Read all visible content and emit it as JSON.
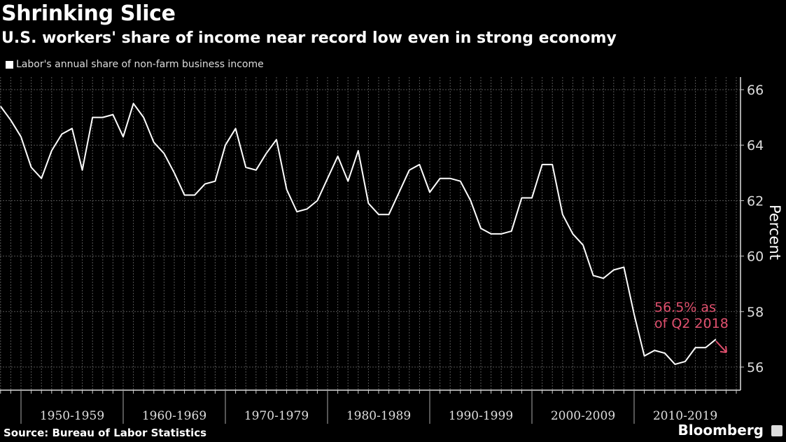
{
  "chart_data": {
    "type": "line",
    "title": "Shrinking Slice",
    "subtitle": "U.S. workers' share of income near record low even in strong economy",
    "ylabel": "Percent",
    "xlabel": "",
    "ylim": [
      55,
      66.5
    ],
    "yticks": [
      56,
      58,
      60,
      62,
      64,
      66
    ],
    "y_axis_position": "right",
    "grid": true,
    "legend_placement": "top-left",
    "x_decade_labels": [
      "1950-1959",
      "1960-1969",
      "1970-1979",
      "1980-1989",
      "1990-1999",
      "2000-2009",
      "2010-2019"
    ],
    "x_decade_starts": [
      1950,
      1960,
      1970,
      1980,
      1990,
      2000,
      2010
    ],
    "series": [
      {
        "name": "Labor's annual share of non-farm business income",
        "color": "#ffffff",
        "x": [
          1948,
          1949,
          1950,
          1951,
          1952,
          1953,
          1954,
          1955,
          1956,
          1957,
          1958,
          1959,
          1960,
          1961,
          1962,
          1963,
          1964,
          1965,
          1966,
          1967,
          1968,
          1969,
          1970,
          1971,
          1972,
          1973,
          1974,
          1975,
          1976,
          1977,
          1978,
          1979,
          1980,
          1981,
          1982,
          1983,
          1984,
          1985,
          1986,
          1987,
          1988,
          1989,
          1990,
          1991,
          1992,
          1993,
          1994,
          1995,
          1996,
          1997,
          1998,
          1999,
          2000,
          2001,
          2002,
          2003,
          2004,
          2005,
          2006,
          2007,
          2008,
          2009,
          2010,
          2011,
          2012,
          2013,
          2014,
          2015,
          2016,
          2017,
          2018
        ],
        "values": [
          65.4,
          64.9,
          64.3,
          63.2,
          62.8,
          63.8,
          64.4,
          64.6,
          63.1,
          65.0,
          65.0,
          65.1,
          64.3,
          65.5,
          65.0,
          64.1,
          63.7,
          63.0,
          62.2,
          62.2,
          62.6,
          62.7,
          64.0,
          64.6,
          63.2,
          63.1,
          63.7,
          64.2,
          62.4,
          61.6,
          61.7,
          62.0,
          62.8,
          63.6,
          62.7,
          63.8,
          61.9,
          61.5,
          61.5,
          62.3,
          63.1,
          63.3,
          62.3,
          62.8,
          62.8,
          62.7,
          62.0,
          61.0,
          60.8,
          60.8,
          60.9,
          62.1,
          62.1,
          63.3,
          63.3,
          61.5,
          60.8,
          60.4,
          59.3,
          59.2,
          59.5,
          59.6,
          57.9,
          56.4,
          56.6,
          56.5,
          56.1,
          56.2,
          56.7,
          56.7,
          57.0
        ]
      }
    ],
    "annotation": {
      "text_line1": "56.5% as",
      "text_line2": "of Q2 2018",
      "color": "#e0506e"
    }
  },
  "footer": {
    "source": "Source: Bureau of Labor Statistics",
    "brand": "Bloomberg"
  }
}
